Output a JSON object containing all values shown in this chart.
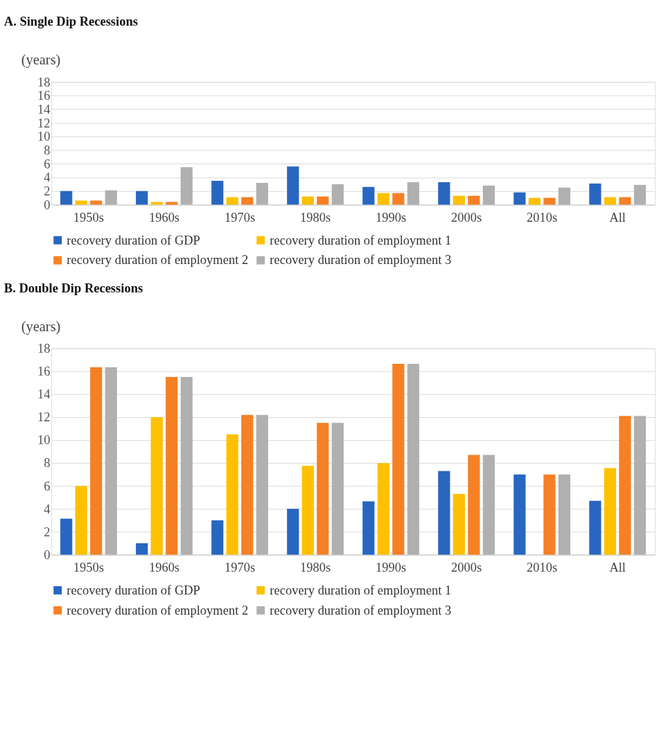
{
  "chart_data": [
    {
      "type": "bar",
      "title": "A.   Single Dip Recessions",
      "ylabel": "(years)",
      "categories": [
        "1950s",
        "1960s",
        "1970s",
        "1980s",
        "1990s",
        "2000s",
        "2010s",
        "All"
      ],
      "series": [
        {
          "name": "recovery duration of GDP",
          "color": "#2866c0",
          "values": [
            2.0,
            2.0,
            3.5,
            5.6,
            2.6,
            3.3,
            1.8,
            3.1
          ]
        },
        {
          "name": "recovery duration of employment 1",
          "color": "#ffc000",
          "values": [
            0.6,
            0.4,
            1.1,
            1.2,
            1.7,
            1.3,
            1.0,
            1.1
          ]
        },
        {
          "name": "recovery duration of employment 2",
          "color": "#f58025",
          "values": [
            0.6,
            0.4,
            1.1,
            1.2,
            1.7,
            1.3,
            1.0,
            1.1
          ]
        },
        {
          "name": "recovery duration of employment 3",
          "color": "#b0b0b0",
          "values": [
            2.1,
            5.5,
            3.2,
            3.0,
            3.3,
            2.8,
            2.5,
            2.9
          ]
        }
      ],
      "ylim": [
        0,
        18
      ],
      "yticks": [
        0,
        2,
        4,
        6,
        8,
        10,
        12,
        14,
        16,
        18
      ],
      "grid": "y",
      "legend": "bottom"
    },
    {
      "type": "bar",
      "title": "B.   Double Dip Recessions",
      "ylabel": "(years)",
      "categories": [
        "1950s",
        "1960s",
        "1970s",
        "1980s",
        "1990s",
        "2000s",
        "2010s",
        "All"
      ],
      "series": [
        {
          "name": "recovery duration of GDP",
          "color": "#2866c0",
          "values": [
            3.15,
            1.0,
            3.0,
            4.0,
            4.65,
            7.3,
            7.0,
            4.7
          ]
        },
        {
          "name": "recovery duration of employment 1",
          "color": "#ffc000",
          "values": [
            6.0,
            12.0,
            10.5,
            7.75,
            8.0,
            5.3,
            null,
            7.55
          ]
        },
        {
          "name": "recovery duration of employment 2",
          "color": "#f58025",
          "values": [
            16.35,
            15.5,
            12.2,
            11.5,
            16.65,
            8.7,
            7.0,
            12.1
          ]
        },
        {
          "name": "recovery duration of employment 3",
          "color": "#b0b0b0",
          "values": [
            16.35,
            15.5,
            12.2,
            11.5,
            16.65,
            8.7,
            7.0,
            12.1
          ]
        }
      ],
      "ylim": [
        0,
        18
      ],
      "yticks": [
        0,
        2,
        4,
        6,
        8,
        10,
        12,
        14,
        16,
        18
      ],
      "grid": "y",
      "legend": "bottom"
    }
  ]
}
